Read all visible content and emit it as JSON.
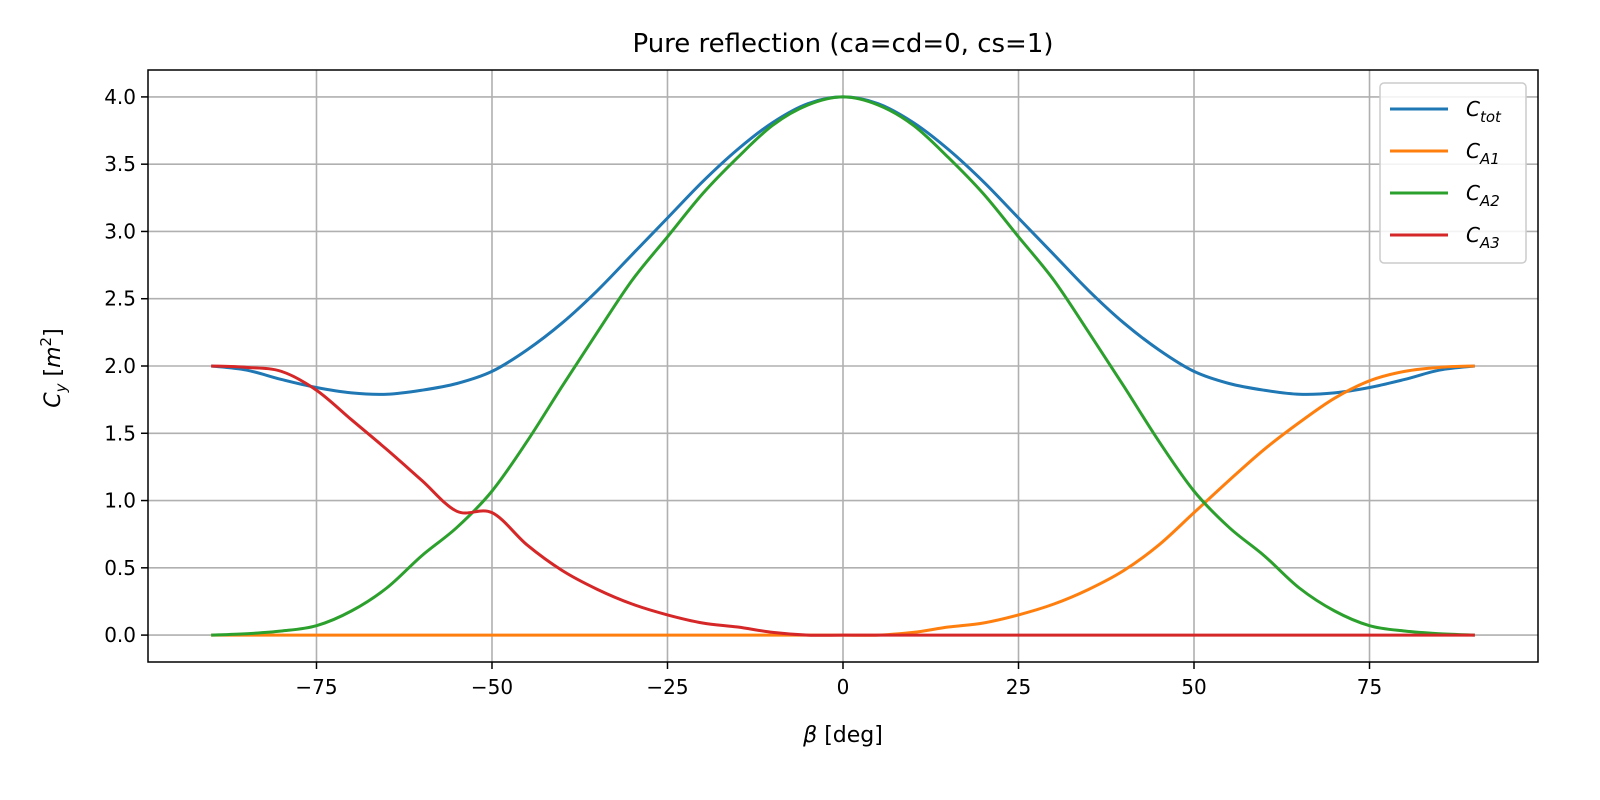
{
  "chart_data": {
    "type": "line",
    "title": "Pure reflection (ca=cd=0, cs=1)",
    "xlabel": {
      "symbol": "β",
      "unit": "[deg]"
    },
    "ylabel": {
      "base": "C",
      "sub": "y",
      "unit_open": "[m",
      "unit_sup": "2",
      "unit_close": "]"
    },
    "xlim": [
      -99,
      99
    ],
    "ylim": [
      -0.2,
      4.2
    ],
    "x_ticks": [
      -75,
      -50,
      -25,
      0,
      25,
      50,
      75
    ],
    "x_tick_labels": [
      "−75",
      "−50",
      "−25",
      "0",
      "25",
      "50",
      "75"
    ],
    "y_ticks": [
      0.0,
      0.5,
      1.0,
      1.5,
      2.0,
      2.5,
      3.0,
      3.5,
      4.0
    ],
    "y_tick_labels": [
      "0.0",
      "0.5",
      "1.0",
      "1.5",
      "2.0",
      "2.5",
      "3.0",
      "3.5",
      "4.0"
    ],
    "grid": true,
    "legend_position": "top-right",
    "x": [
      -90,
      -85,
      -80,
      -75,
      -70,
      -65,
      -60,
      -55,
      -50,
      -45,
      -40,
      -35,
      -30,
      -25,
      -20,
      -15,
      -10,
      -5,
      0,
      5,
      10,
      15,
      20,
      25,
      30,
      35,
      40,
      45,
      50,
      55,
      60,
      65,
      70,
      75,
      80,
      85,
      90
    ],
    "series": [
      {
        "name": "C",
        "sub": "tot",
        "color": "#1f77b4",
        "values": [
          2.0,
          1.97,
          1.9,
          1.84,
          1.8,
          1.79,
          1.82,
          1.87,
          1.96,
          2.12,
          2.32,
          2.56,
          2.83,
          3.1,
          3.37,
          3.61,
          3.81,
          3.95,
          4.0,
          3.95,
          3.81,
          3.61,
          3.37,
          3.1,
          2.83,
          2.56,
          2.32,
          2.12,
          1.96,
          1.87,
          1.82,
          1.79,
          1.8,
          1.84,
          1.9,
          1.97,
          2.0
        ]
      },
      {
        "name": "C",
        "sub": "A1",
        "color": "#ff7f0e",
        "values": [
          0,
          0,
          0,
          0,
          0,
          0,
          0,
          0,
          0,
          0,
          0,
          0,
          0,
          0,
          0,
          0,
          0,
          0,
          0,
          0.0,
          0.02,
          0.06,
          0.09,
          0.15,
          0.23,
          0.34,
          0.48,
          0.67,
          0.91,
          1.15,
          1.38,
          1.58,
          1.76,
          1.89,
          1.96,
          1.99,
          2.0
        ]
      },
      {
        "name": "C",
        "sub": "A2",
        "color": "#2ca02c",
        "values": [
          0.0,
          0.01,
          0.03,
          0.07,
          0.18,
          0.35,
          0.59,
          0.8,
          1.07,
          1.44,
          1.85,
          2.25,
          2.64,
          2.96,
          3.28,
          3.55,
          3.79,
          3.94,
          4.0,
          3.94,
          3.79,
          3.55,
          3.28,
          2.96,
          2.64,
          2.25,
          1.85,
          1.44,
          1.07,
          0.8,
          0.59,
          0.35,
          0.18,
          0.07,
          0.03,
          0.01,
          0.0
        ]
      },
      {
        "name": "C",
        "sub": "A3",
        "color": "#d62728",
        "values": [
          2.0,
          1.99,
          1.96,
          1.82,
          1.6,
          1.38,
          1.15,
          0.92,
          0.91,
          0.67,
          0.48,
          0.34,
          0.23,
          0.15,
          0.09,
          0.06,
          0.02,
          0.0,
          0.0,
          0,
          0,
          0,
          0,
          0,
          0,
          0,
          0,
          0,
          0,
          0,
          0,
          0,
          0,
          0,
          0,
          0,
          0
        ]
      }
    ]
  }
}
